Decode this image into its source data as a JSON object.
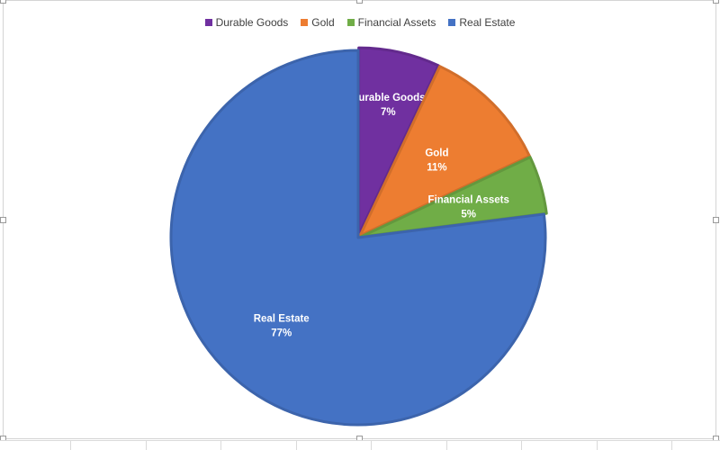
{
  "chart_data": {
    "type": "pie",
    "categories": [
      "Durable Goods",
      "Gold",
      "Financial Assets",
      "Real Estate"
    ],
    "values": [
      7,
      11,
      5,
      77
    ],
    "value_labels": [
      "7%",
      "11%",
      "5%",
      "77%"
    ],
    "colors": [
      "#7030A0",
      "#ED7D31",
      "#70AD47",
      "#4472C4"
    ],
    "legend_position": "top",
    "start_angle_deg": 0,
    "direction": "clockwise"
  }
}
